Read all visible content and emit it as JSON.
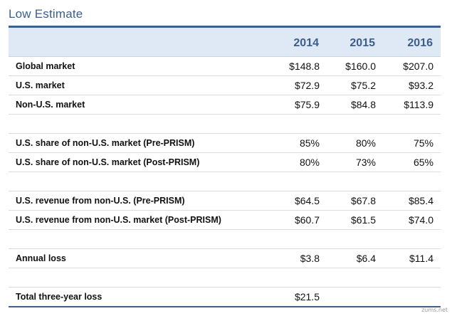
{
  "title": "Low Estimate",
  "years": [
    "2014",
    "2015",
    "2016"
  ],
  "rows": [
    {
      "label": "Global market",
      "values": [
        "$148.8",
        "$160.0",
        "$207.0"
      ]
    },
    {
      "label": "U.S. market",
      "values": [
        "$72.9",
        "$75.2",
        "$93.2"
      ]
    },
    {
      "label": "Non-U.S. market",
      "values": [
        "$75.9",
        "$84.8",
        "$113.9"
      ]
    },
    {
      "label": "U.S. share of non-U.S. market (Pre-PRISM)",
      "values": [
        "85%",
        "80%",
        "75%"
      ]
    },
    {
      "label": "U.S. share of non-U.S. market (Post-PRISM)",
      "values": [
        "80%",
        "73%",
        "65%"
      ]
    },
    {
      "label": "U.S. revenue from non-U.S. (Pre-PRISM)",
      "values": [
        "$64.5",
        "$67.8",
        "$85.4"
      ]
    },
    {
      "label": "U.S. revenue from non-U.S. market (Post-PRISM)",
      "values": [
        "$60.7",
        "$61.5",
        "$74.0"
      ]
    },
    {
      "label": "Annual loss",
      "values": [
        "$3.8",
        "$6.4",
        "$11.4"
      ]
    },
    {
      "label": "Total three-year loss",
      "values": [
        "$21.5",
        "",
        ""
      ]
    }
  ],
  "watermark": "zums.net"
}
